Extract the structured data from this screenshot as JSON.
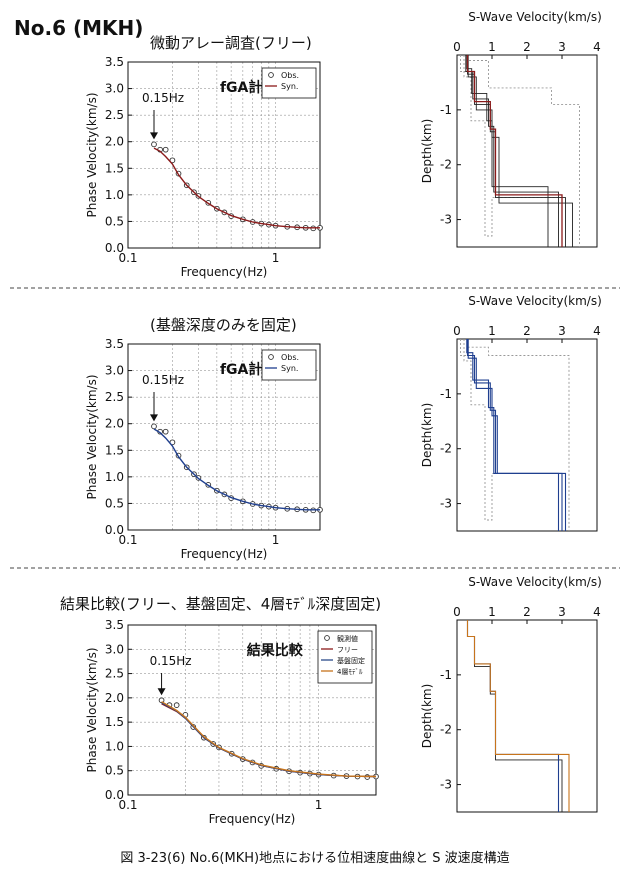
{
  "page": {
    "header": "No.6 (MKH)",
    "figure_caption": "図 3-23(6)  No.6(MKH)地点における位相速度曲線と S 波速度構造"
  },
  "colors": {
    "obs_marker": "#333333",
    "syn_free": "#8b1a1a",
    "syn_fixed": "#1f3f8f",
    "cmp_fixed": "#2b4a8a",
    "cmp_4layer": "#c7741c",
    "profile_gray": "#999999",
    "grid": "#9a9a9a"
  },
  "panels": [
    {
      "title": "微動アレー調査(フリー)",
      "annotation": "fGA計算結果",
      "marker_label": "0.15Hz",
      "legend": [
        "Obs.",
        "Syn."
      ]
    },
    {
      "title": "(基盤深度のみを固定)",
      "annotation": "fGA計算結果",
      "marker_label": "0.15Hz",
      "legend": [
        "Obs.",
        "Syn."
      ]
    },
    {
      "title": "結果比較(フリー、基盤固定、4層ﾓﾃﾞﾙ深度固定)",
      "annotation": "結果比較",
      "marker_label": "0.15Hz",
      "legend": [
        "観測値",
        "フリー",
        "基盤固定",
        "4層ﾓﾃﾞﾙ"
      ]
    }
  ],
  "chart_data": [
    {
      "type": "scatter",
      "id": "phase-free",
      "xlabel": "Frequency(Hz)",
      "ylabel": "Phase Velocity(km/s)",
      "xscale": "log",
      "xlim": [
        0.1,
        2
      ],
      "ylim": [
        0,
        3.5
      ],
      "xticks": [
        0.1,
        1
      ],
      "yticks": [
        0.0,
        0.5,
        1.0,
        1.5,
        2.0,
        2.5,
        3.0,
        3.5
      ],
      "grid": true,
      "legend_position": "top-right",
      "series": [
        {
          "name": "Obs.",
          "style": "markers",
          "x": [
            0.15,
            0.165,
            0.18,
            0.2,
            0.22,
            0.25,
            0.28,
            0.3,
            0.35,
            0.4,
            0.45,
            0.5,
            0.6,
            0.7,
            0.8,
            0.9,
            1.0,
            1.2,
            1.4,
            1.6,
            1.8,
            2.0
          ],
          "y": [
            1.95,
            1.85,
            1.85,
            1.65,
            1.4,
            1.18,
            1.05,
            0.98,
            0.85,
            0.74,
            0.67,
            0.6,
            0.54,
            0.49,
            0.46,
            0.44,
            0.42,
            0.4,
            0.39,
            0.38,
            0.37,
            0.38
          ]
        },
        {
          "name": "Syn.",
          "style": "line",
          "x": [
            0.15,
            0.165,
            0.18,
            0.2,
            0.22,
            0.25,
            0.28,
            0.3,
            0.35,
            0.4,
            0.45,
            0.5,
            0.6,
            0.7,
            0.8,
            0.9,
            1.0,
            1.2,
            1.4,
            1.6,
            1.8,
            2.0
          ],
          "y": [
            1.88,
            1.82,
            1.72,
            1.58,
            1.38,
            1.18,
            1.05,
            0.97,
            0.84,
            0.74,
            0.67,
            0.61,
            0.54,
            0.49,
            0.46,
            0.44,
            0.42,
            0.4,
            0.39,
            0.38,
            0.38,
            0.38
          ]
        }
      ]
    },
    {
      "type": "line",
      "id": "profile-free",
      "title": "S-Wave Velocity(km/s)",
      "ylabel": "Depth(km)",
      "xlim": [
        0,
        4
      ],
      "ylim": [
        -3.5,
        0
      ],
      "xticks": [
        0,
        1,
        2,
        3,
        4
      ],
      "yticks": [
        -1,
        -2,
        -3
      ],
      "series": [
        {
          "name": "bounds",
          "style": "dotted-gray",
          "x": [
            0.1,
            0.1,
            0.3,
            0.3,
            0.9,
            0.9,
            2.7,
            2.7,
            3.5,
            3.5
          ],
          "y": [
            0,
            -0.3,
            -0.3,
            -0.1,
            -0.1,
            -0.6,
            -0.6,
            -0.9,
            -0.9,
            -3.5
          ]
        },
        {
          "name": "bounds",
          "style": "dotted-gray",
          "x": [
            0.2,
            0.2,
            0.4,
            0.4,
            0.8,
            0.8,
            1.0,
            1.0,
            3.0,
            3.0
          ],
          "y": [
            0,
            -0.4,
            -0.4,
            -1.2,
            -1.2,
            -3.3,
            -3.3,
            -2.6,
            -2.6,
            -3.5
          ]
        },
        {
          "name": "model",
          "style": "dark",
          "x": [
            0.25,
            0.25,
            0.45,
            0.45,
            0.9,
            0.9,
            1.05,
            1.05,
            2.9,
            2.9
          ],
          "y": [
            0,
            -0.3,
            -0.3,
            -0.8,
            -0.8,
            -1.3,
            -1.3,
            -2.5,
            -2.5,
            -3.5
          ]
        },
        {
          "name": "model",
          "style": "dark",
          "x": [
            0.3,
            0.3,
            0.5,
            0.5,
            0.95,
            0.95,
            1.1,
            1.1,
            3.1,
            3.1
          ],
          "y": [
            0,
            -0.35,
            -0.35,
            -0.9,
            -0.9,
            -1.4,
            -1.4,
            -2.6,
            -2.6,
            -3.5
          ]
        },
        {
          "name": "model",
          "style": "dark",
          "x": [
            0.28,
            0.28,
            0.42,
            0.42,
            0.85,
            0.85,
            1.0,
            1.0,
            2.6,
            2.6
          ],
          "y": [
            0,
            -0.25,
            -0.25,
            -0.7,
            -0.7,
            -1.2,
            -1.2,
            -2.4,
            -2.4,
            -3.5
          ]
        },
        {
          "name": "model",
          "style": "dark",
          "x": [
            0.32,
            0.32,
            0.55,
            0.55,
            1.0,
            1.0,
            1.2,
            1.2,
            3.3,
            3.3
          ],
          "y": [
            0,
            -0.4,
            -0.4,
            -1.0,
            -1.0,
            -1.5,
            -1.5,
            -2.7,
            -2.7,
            -3.5
          ]
        },
        {
          "name": "best",
          "style": "red",
          "x": [
            0.3,
            0.3,
            0.5,
            0.5,
            0.95,
            0.95,
            1.1,
            1.1,
            3.0,
            3.0
          ],
          "y": [
            0,
            -0.3,
            -0.3,
            -0.85,
            -0.85,
            -1.35,
            -1.35,
            -2.55,
            -2.55,
            -3.5
          ]
        }
      ]
    },
    {
      "type": "scatter",
      "id": "phase-fixed",
      "xlabel": "Frequency(Hz)",
      "ylabel": "Phase Velocity(km/s)",
      "xscale": "log",
      "xlim": [
        0.1,
        2
      ],
      "ylim": [
        0,
        3.5
      ],
      "xticks": [
        0.1,
        1
      ],
      "yticks": [
        0.0,
        0.5,
        1.0,
        1.5,
        2.0,
        2.5,
        3.0,
        3.5
      ],
      "grid": true,
      "legend_position": "top-right",
      "series": [
        {
          "name": "Obs.",
          "style": "markers",
          "x": [
            0.15,
            0.165,
            0.18,
            0.2,
            0.22,
            0.25,
            0.28,
            0.3,
            0.35,
            0.4,
            0.45,
            0.5,
            0.6,
            0.7,
            0.8,
            0.9,
            1.0,
            1.2,
            1.4,
            1.6,
            1.8,
            2.0
          ],
          "y": [
            1.95,
            1.85,
            1.85,
            1.65,
            1.4,
            1.18,
            1.05,
            0.98,
            0.85,
            0.74,
            0.67,
            0.6,
            0.54,
            0.49,
            0.46,
            0.44,
            0.42,
            0.4,
            0.39,
            0.38,
            0.37,
            0.38
          ]
        },
        {
          "name": "Syn.",
          "style": "line",
          "x": [
            0.15,
            0.165,
            0.18,
            0.2,
            0.22,
            0.25,
            0.28,
            0.3,
            0.35,
            0.4,
            0.45,
            0.5,
            0.6,
            0.7,
            0.8,
            0.9,
            1.0,
            1.2,
            1.4,
            1.6,
            1.8,
            2.0
          ],
          "y": [
            1.9,
            1.83,
            1.73,
            1.58,
            1.38,
            1.18,
            1.05,
            0.97,
            0.84,
            0.74,
            0.67,
            0.61,
            0.54,
            0.49,
            0.46,
            0.44,
            0.42,
            0.4,
            0.39,
            0.38,
            0.38,
            0.38
          ]
        }
      ]
    },
    {
      "type": "line",
      "id": "profile-fixed",
      "title": "S-Wave Velocity(km/s)",
      "ylabel": "Depth(km)",
      "xlim": [
        0,
        4
      ],
      "ylim": [
        -3.5,
        0
      ],
      "xticks": [
        0,
        1,
        2,
        3,
        4
      ],
      "yticks": [
        -1,
        -2,
        -3
      ],
      "series": [
        {
          "name": "bounds",
          "style": "dotted-gray",
          "x": [
            0.1,
            0.1,
            0.3,
            0.3,
            0.9,
            0.9,
            3.2,
            3.2
          ],
          "y": [
            0,
            -0.3,
            -0.3,
            -0.15,
            -0.15,
            -0.3,
            -0.3,
            -3.5
          ]
        },
        {
          "name": "bounds",
          "style": "dotted-gray",
          "x": [
            0.2,
            0.2,
            0.4,
            0.4,
            0.8,
            0.8,
            1.0,
            1.0,
            3.0,
            3.0
          ],
          "y": [
            0,
            -0.4,
            -0.4,
            -1.2,
            -1.2,
            -3.3,
            -3.3,
            -2.45,
            -2.45,
            -3.5
          ]
        },
        {
          "name": "model",
          "style": "blue",
          "x": [
            0.3,
            0.3,
            0.5,
            0.5,
            0.95,
            0.95,
            1.1,
            1.1,
            2.9,
            2.9
          ],
          "y": [
            0,
            -0.3,
            -0.3,
            -0.8,
            -0.8,
            -1.3,
            -1.3,
            -2.45,
            -2.45,
            -3.5
          ]
        },
        {
          "name": "model",
          "style": "blue",
          "x": [
            0.32,
            0.32,
            0.55,
            0.55,
            1.0,
            1.0,
            1.15,
            1.15,
            3.1,
            3.1
          ],
          "y": [
            0,
            -0.35,
            -0.35,
            -0.9,
            -0.9,
            -1.4,
            -1.4,
            -2.45,
            -2.45,
            -3.5
          ]
        },
        {
          "name": "model",
          "style": "blue",
          "x": [
            0.28,
            0.28,
            0.45,
            0.45,
            0.9,
            0.9,
            1.05,
            1.05,
            3.0,
            3.0
          ],
          "y": [
            0,
            -0.25,
            -0.25,
            -0.75,
            -0.75,
            -1.25,
            -1.25,
            -2.45,
            -2.45,
            -3.5
          ]
        }
      ]
    },
    {
      "type": "scatter",
      "id": "phase-compare",
      "xlabel": "Frequency(Hz)",
      "ylabel": "Phase Velocity(km/s)",
      "xscale": "log",
      "xlim": [
        0.1,
        2
      ],
      "ylim": [
        0,
        3.5
      ],
      "xticks": [
        0.1,
        1
      ],
      "yticks": [
        0.0,
        0.5,
        1.0,
        1.5,
        2.0,
        2.5,
        3.0,
        3.5
      ],
      "grid": true,
      "legend_position": "top-right",
      "series": [
        {
          "name": "観測値",
          "style": "markers",
          "x": [
            0.15,
            0.165,
            0.18,
            0.2,
            0.22,
            0.25,
            0.28,
            0.3,
            0.35,
            0.4,
            0.45,
            0.5,
            0.6,
            0.7,
            0.8,
            0.9,
            1.0,
            1.2,
            1.4,
            1.6,
            1.8,
            2.0
          ],
          "y": [
            1.95,
            1.85,
            1.85,
            1.65,
            1.4,
            1.18,
            1.05,
            0.98,
            0.85,
            0.74,
            0.67,
            0.6,
            0.54,
            0.49,
            0.46,
            0.44,
            0.42,
            0.4,
            0.39,
            0.38,
            0.37,
            0.38
          ]
        },
        {
          "name": "フリー",
          "style": "line",
          "x": [
            0.15,
            0.18,
            0.2,
            0.25,
            0.3,
            0.4,
            0.5,
            0.7,
            1.0,
            1.4,
            2.0
          ],
          "y": [
            1.88,
            1.72,
            1.58,
            1.18,
            0.97,
            0.74,
            0.61,
            0.49,
            0.42,
            0.39,
            0.38
          ]
        },
        {
          "name": "基盤固定",
          "style": "line",
          "x": [
            0.15,
            0.18,
            0.2,
            0.25,
            0.3,
            0.4,
            0.5,
            0.7,
            1.0,
            1.4,
            2.0
          ],
          "y": [
            1.9,
            1.73,
            1.58,
            1.18,
            0.97,
            0.74,
            0.61,
            0.49,
            0.42,
            0.39,
            0.38
          ]
        },
        {
          "name": "4層ﾓﾃﾞﾙ",
          "style": "line",
          "x": [
            0.15,
            0.18,
            0.2,
            0.25,
            0.3,
            0.4,
            0.5,
            0.7,
            1.0,
            1.4,
            2.0
          ],
          "y": [
            1.92,
            1.74,
            1.6,
            1.2,
            0.98,
            0.75,
            0.62,
            0.5,
            0.43,
            0.39,
            0.38
          ]
        }
      ]
    },
    {
      "type": "line",
      "id": "profile-compare",
      "title": "S-Wave Velocity(km/s)",
      "ylabel": "Depth(km)",
      "xlim": [
        0,
        4
      ],
      "ylim": [
        -3.5,
        0
      ],
      "xticks": [
        0,
        1,
        2,
        3,
        4
      ],
      "yticks": [
        -1,
        -2,
        -3
      ],
      "series": [
        {
          "name": "フリー",
          "style": "dark",
          "x": [
            0.3,
            0.3,
            0.5,
            0.5,
            0.95,
            0.95,
            1.1,
            1.1,
            3.0,
            3.0
          ],
          "y": [
            0,
            -0.3,
            -0.3,
            -0.85,
            -0.85,
            -1.35,
            -1.35,
            -2.55,
            -2.55,
            -3.5
          ]
        },
        {
          "name": "基盤固定",
          "style": "blue",
          "x": [
            0.3,
            0.3,
            0.5,
            0.5,
            0.95,
            0.95,
            1.1,
            1.1,
            2.9,
            2.9
          ],
          "y": [
            0,
            -0.3,
            -0.3,
            -0.8,
            -0.8,
            -1.3,
            -1.3,
            -2.45,
            -2.45,
            -3.5
          ]
        },
        {
          "name": "4層ﾓﾃﾞﾙ",
          "style": "orange",
          "x": [
            0.3,
            0.3,
            0.5,
            0.5,
            0.95,
            0.95,
            1.1,
            1.1,
            3.2,
            3.2
          ],
          "y": [
            0,
            -0.3,
            -0.3,
            -0.8,
            -0.8,
            -1.3,
            -1.3,
            -2.45,
            -2.45,
            -3.5
          ]
        }
      ]
    }
  ]
}
